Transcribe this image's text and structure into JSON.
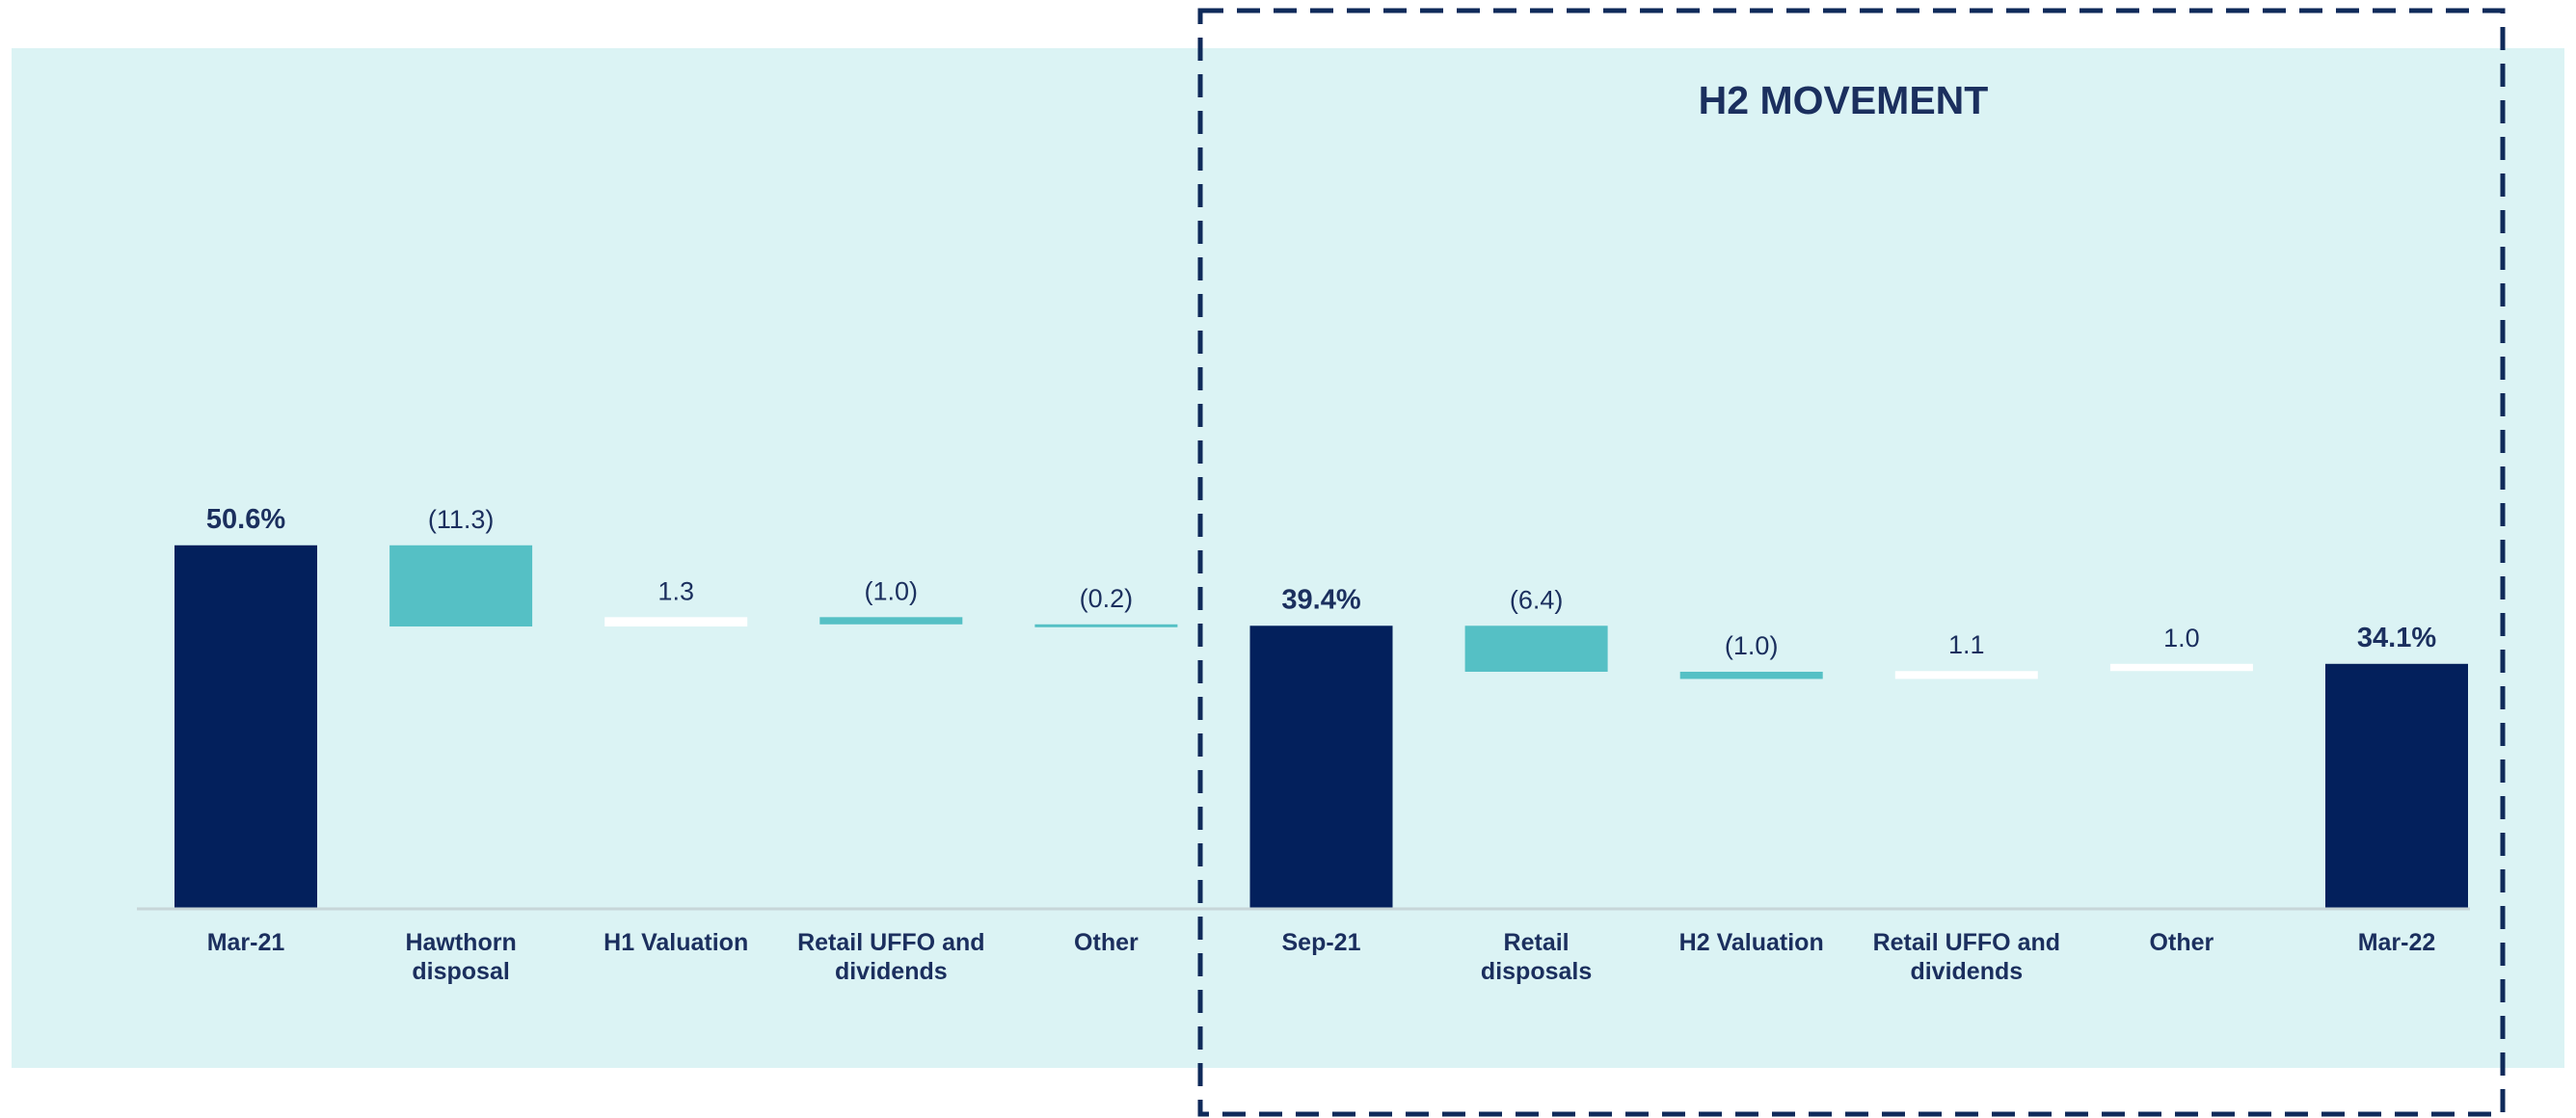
{
  "colors": {
    "background_panel": "#dbf3f4",
    "total_bar": "#03205c",
    "decrease_bar": "#55c0c5",
    "increase_bar": "#ffffff",
    "text": "#1b2f5e",
    "axis": "#c7d6d8",
    "highlight_border": "#0f2a5a"
  },
  "annotation": {
    "label": "H2 MOVEMENT"
  },
  "chart_data": {
    "type": "bar",
    "subtype": "waterfall",
    "title": "",
    "xlabel": "",
    "ylabel": "",
    "ylim": [
      0,
      60
    ],
    "grid": false,
    "legend": "none",
    "categories": [
      "Mar-21",
      "Hawthorn disposal",
      "H1 Valuation",
      "Retail UFFO and dividends",
      "Other",
      "Sep-21",
      "Retail disposals",
      "H2 Valuation",
      "Retail UFFO and dividends",
      "Other",
      "Mar-22"
    ],
    "category_lines": [
      [
        "Mar-21"
      ],
      [
        "Hawthorn",
        "disposal"
      ],
      [
        "H1 Valuation"
      ],
      [
        "Retail UFFO and",
        "dividends"
      ],
      [
        "Other"
      ],
      [
        "Sep-21"
      ],
      [
        "Retail",
        "disposals"
      ],
      [
        "H2 Valuation"
      ],
      [
        "Retail UFFO and",
        "dividends"
      ],
      [
        "Other"
      ],
      [
        "Mar-22"
      ]
    ],
    "kinds": [
      "total",
      "delta",
      "delta",
      "delta",
      "delta",
      "total",
      "delta",
      "delta",
      "delta",
      "delta",
      "total"
    ],
    "values": [
      50.6,
      -11.3,
      1.3,
      -1.0,
      -0.2,
      39.4,
      -6.4,
      -1.0,
      1.1,
      1.0,
      34.1
    ],
    "data_labels": [
      "50.6%",
      "(11.3)",
      "1.3",
      "(1.0)",
      "(0.2)",
      "39.4%",
      "(6.4)",
      "(1.0)",
      "1.1",
      "1.0",
      "34.1%"
    ],
    "highlight_range": [
      "Sep-21",
      "Mar-22"
    ]
  }
}
